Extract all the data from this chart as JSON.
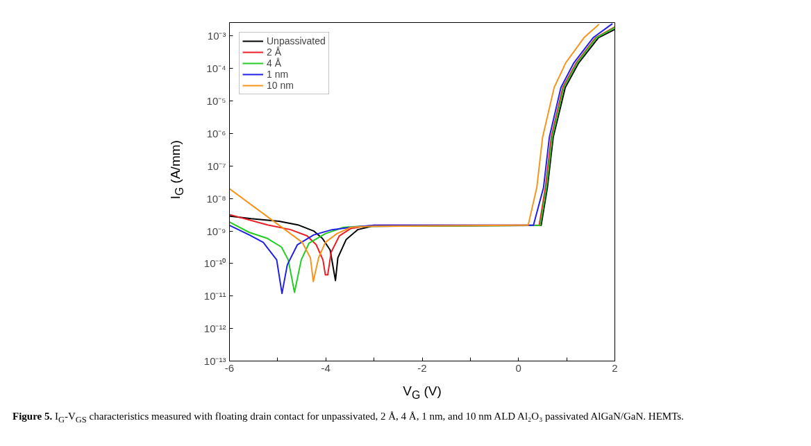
{
  "chart_data": {
    "type": "line",
    "xlabel": "V$_{G}$ (V)",
    "ylabel": "I$_{G}$ (A/mm)",
    "log": "y",
    "grid": false,
    "legend": "top left",
    "marker": "none",
    "line_style": "solid",
    "xlim": [
      -6,
      2
    ],
    "xticks": [
      -6,
      {
        "value": -5,
        "label": null
      },
      -4,
      {
        "value": -3,
        "label": null
      },
      -2,
      {
        "value": -1,
        "label": null
      },
      0,
      {
        "value": 1,
        "label": null
      },
      2
    ],
    "ylim": [
      1e-13,
      0.0026
    ],
    "yticks": [
      {
        "value": 1e-13,
        "label": "10⁻¹³"
      },
      {
        "value": 1e-12,
        "label": "10⁻¹²"
      },
      {
        "value": 1e-11,
        "label": "10⁻¹¹"
      },
      {
        "value": 1e-10,
        "label": "10⁻¹⁰"
      },
      {
        "value": 1e-09,
        "label": "10⁻⁹"
      },
      {
        "value": 1e-08,
        "label": "10⁻⁸"
      },
      {
        "value": 1e-07,
        "label": "10⁻⁷"
      },
      {
        "value": 1e-06,
        "label": "10⁻⁶"
      },
      {
        "value": 1e-05,
        "label": "10⁻⁵"
      },
      {
        "value": 0.0001,
        "label": "10⁻⁴"
      },
      {
        "value": 0.001,
        "label": "10⁻³"
      }
    ],
    "annotations": [
      "Figure 5. I$_{G}$-V$_{GS}$ characteristics measured with floating drain contact for unpassivated, 2 Å, 4 Å, 1 nm, and 10 nm ALD Al₂O₃ passivated AlGaN/GaN. HEMTs."
    ],
    "series": [
      {
        "name": "Unpassivated",
        "color": "#000000",
        "x": [
          -6,
          -5.55,
          -4.97,
          -4.58,
          -4.25,
          -4.07,
          -3.91,
          -3.8,
          -3.75,
          -3.58,
          -3.34,
          -3.05,
          0.47,
          0.6,
          0.72,
          0.97,
          1.25,
          1.66,
          2
        ],
        "values": [
          2.9e-09,
          2.4e-09,
          2e-09,
          1.55e-09,
          1e-09,
          5.9e-10,
          2.6e-10,
          3e-11,
          1.5e-10,
          5.4e-10,
          1.1e-09,
          1.4e-09,
          1.5e-09,
          2.2e-08,
          7.6e-07,
          2.6e-05,
          0.00015,
          0.00089,
          0.0016
        ]
      },
      {
        "name": "2 Å",
        "color": "#ee1c25",
        "x": [
          -6,
          -5.21,
          -4.73,
          -4.39,
          -4.2,
          -4.06,
          -4.01,
          -3.96,
          -3.89,
          -3.72,
          -3.48,
          -3.19,
          -3.0,
          0.43,
          0.56,
          0.68,
          0.92,
          1.2,
          1.6,
          2
        ],
        "values": [
          3.2e-09,
          1.55e-09,
          1.1e-09,
          7.1e-10,
          3.8e-10,
          1.3e-10,
          4.5e-11,
          4.5e-11,
          2.2e-10,
          7.1e-10,
          1.2e-09,
          1.4e-09,
          1.5e-09,
          1.5e-09,
          2.2e-08,
          7.6e-07,
          2.6e-05,
          0.00015,
          0.00089,
          0.0019
        ]
      },
      {
        "name": "4 Å",
        "color": "#22cc22",
        "x": [
          -6,
          -5.59,
          -5.21,
          -4.92,
          -4.78,
          -4.65,
          -4.51,
          -4.35,
          -4.01,
          -3.63,
          -3.29,
          0.45,
          0.58,
          0.7,
          0.94,
          1.22,
          1.62,
          2
        ],
        "values": [
          1.9e-09,
          9.1e-10,
          5.9e-10,
          3.2e-10,
          1.3e-10,
          1.3e-11,
          1.3e-10,
          4.2e-10,
          8.3e-10,
          1.3e-09,
          1.4e-09,
          1.5e-09,
          2.2e-08,
          7.6e-07,
          2.6e-05,
          0.00015,
          0.00089,
          0.0018
        ]
      },
      {
        "name": "1 nm",
        "color": "#1f1fe8",
        "x": [
          -6,
          -5.59,
          -5.3,
          -5.02,
          -4.91,
          -4.8,
          -4.59,
          -4.25,
          -3.87,
          -3.48,
          -3.0,
          0.31,
          0.52,
          0.64,
          0.88,
          1.15,
          1.55,
          1.95
        ],
        "values": [
          1.5e-09,
          7.6e-10,
          4.5e-10,
          1.3e-10,
          1.2e-11,
          9.1e-11,
          3.8e-10,
          7.6e-10,
          1.1e-09,
          1.3e-09,
          1.5e-09,
          1.5e-09,
          2.2e-08,
          7.6e-07,
          2.6e-05,
          0.00015,
          0.00089,
          0.0024
        ]
      },
      {
        "name": "10 nm",
        "color": "#f7941d",
        "x": [
          -6,
          -4.49,
          -4.32,
          -4.26,
          -4.15,
          -4.01,
          -3.77,
          -3.48,
          -3.05,
          0.0,
          0.2,
          0.38,
          0.5,
          0.74,
          0.98,
          1.36,
          1.67
        ],
        "values": [
          2e-08,
          4.5e-10,
          1.5e-10,
          2.8e-11,
          1.5e-10,
          4.5e-10,
          8.3e-10,
          1.3e-09,
          1.4e-09,
          1.5e-09,
          1.5e-09,
          2.2e-08,
          7.6e-07,
          2.6e-05,
          0.00015,
          0.00089,
          0.0023
        ]
      }
    ]
  }
}
